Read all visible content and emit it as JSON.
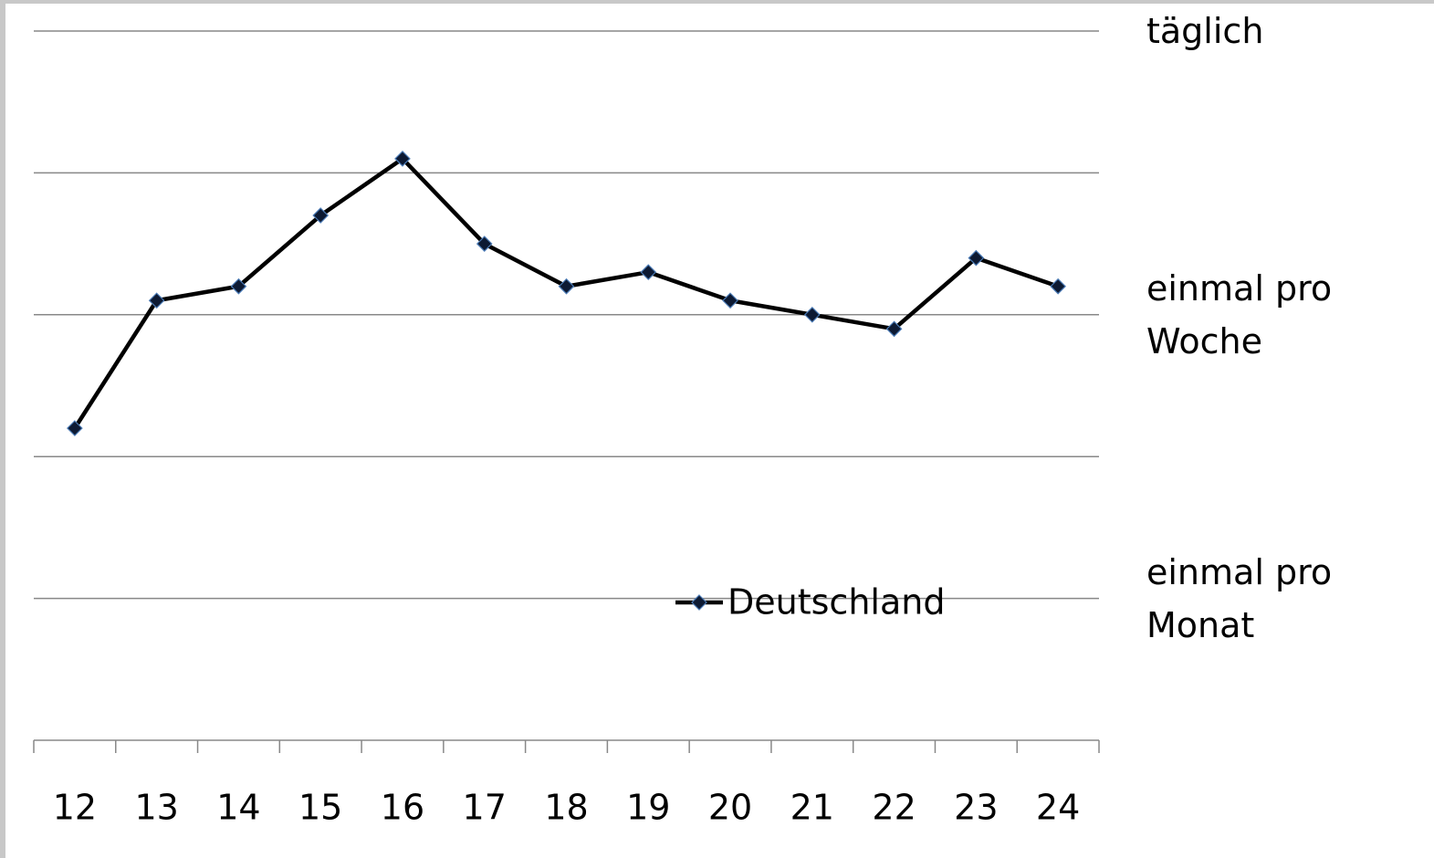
{
  "chart_data": {
    "type": "line",
    "categories": [
      "12",
      "13",
      "14",
      "15",
      "16",
      "17",
      "18",
      "19",
      "20",
      "21",
      "22",
      "23",
      "24"
    ],
    "series": [
      {
        "name": "Deutschland",
        "color": "#000000",
        "marker_color": "#0d1a33",
        "values": [
          2.2,
          3.1,
          3.2,
          3.7,
          4.1,
          3.5,
          3.2,
          3.3,
          3.1,
          3.0,
          2.9,
          3.4,
          3.2
        ]
      }
    ],
    "ylim": [
      0,
      5
    ],
    "yticks": [
      {
        "value": 0,
        "label": null
      },
      {
        "value": 1,
        "label": "einmal pro Monat"
      },
      {
        "value": 2,
        "label": null
      },
      {
        "value": 3,
        "label": "einmal pro Woche"
      },
      {
        "value": 4,
        "label": null
      },
      {
        "value": 5,
        "label": "täglich"
      }
    ],
    "grid": true,
    "legend": "inside-bottom"
  }
}
